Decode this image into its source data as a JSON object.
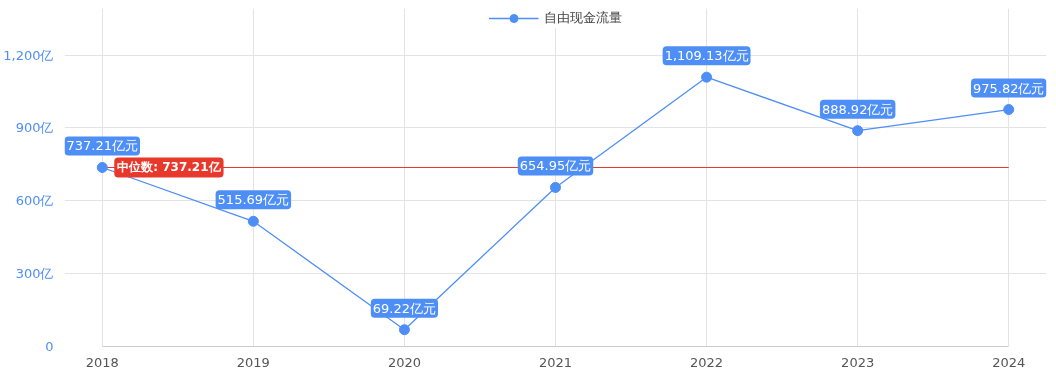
{
  "chart_data": {
    "type": "line",
    "categories": [
      "2018",
      "2019",
      "2020",
      "2021",
      "2022",
      "2023",
      "2024"
    ],
    "series": [
      {
        "name": "自由现金流量",
        "color": "#4e8ef7",
        "values": [
          737.21,
          515.69,
          69.22,
          654.95,
          1109.13,
          888.92,
          975.82
        ],
        "value_labels": [
          "737.21亿元",
          "515.69亿元",
          "69.22亿元",
          "654.95亿元",
          "1,109.13亿元",
          "888.92亿元",
          "975.82亿元"
        ]
      }
    ],
    "ylim": [
      0,
      1200
    ],
    "yticks": [
      {
        "value": 0,
        "label": "0"
      },
      {
        "value": 300,
        "label": "300亿"
      },
      {
        "value": 600,
        "label": "600亿"
      },
      {
        "value": 900,
        "label": "900亿"
      },
      {
        "value": 1200,
        "label": "1,200亿"
      }
    ],
    "ref_lines": [
      {
        "axis": "y",
        "value": 737.21,
        "label": "中位数: 737.21亿",
        "color": "#e8382b"
      }
    ],
    "grid": true,
    "legend": "top",
    "marker": "circle",
    "line_style": "solid"
  }
}
